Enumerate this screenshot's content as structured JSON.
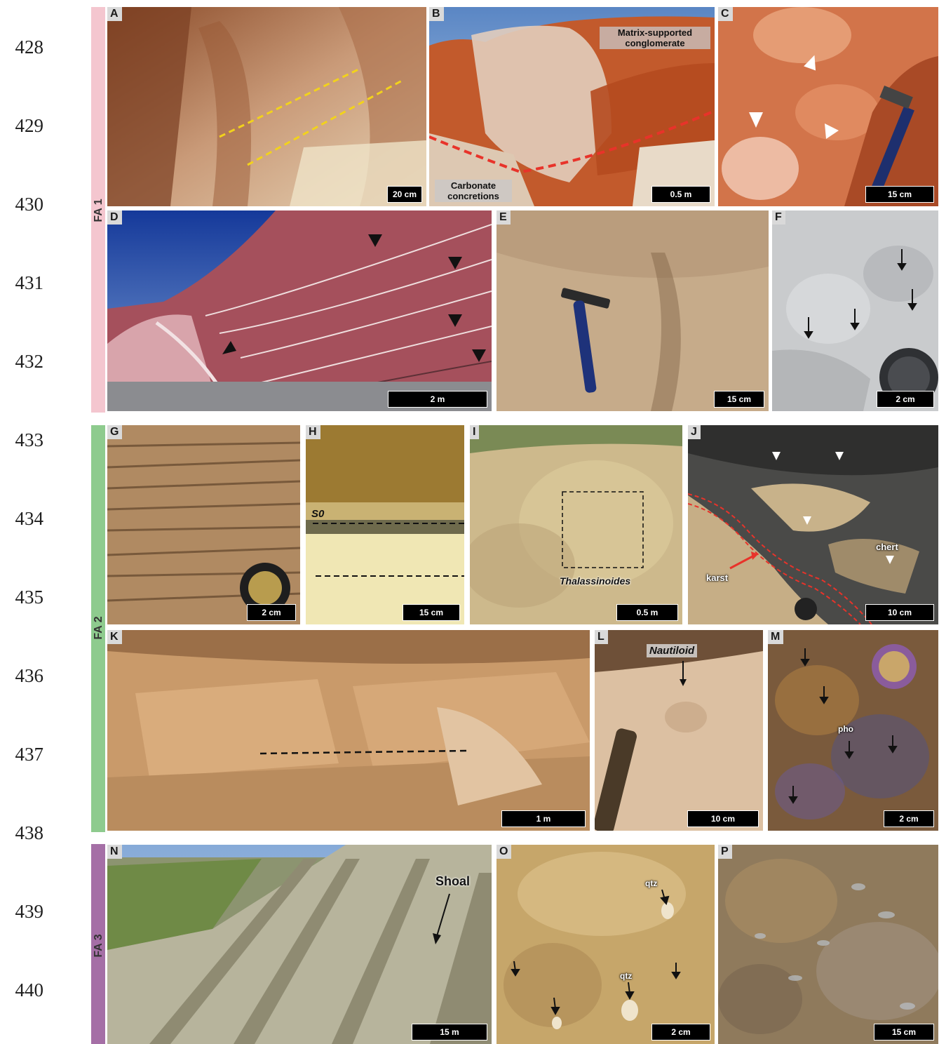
{
  "line_numbers": [
    "428",
    "429",
    "430",
    "431",
    "432",
    "433",
    "434",
    "435",
    "436",
    "437",
    "438",
    "439",
    "440"
  ],
  "facies_associations": {
    "fa1": {
      "label": "FA 1",
      "color": "#f4c6cf"
    },
    "fa2": {
      "label": "FA 2",
      "color": "#8ecb8e"
    },
    "fa3": {
      "label": "FA 3",
      "color": "#a56fa6"
    }
  },
  "panels": {
    "A": {
      "label": "A",
      "scale": "20 cm"
    },
    "B": {
      "label": "B",
      "scale": "0.5 m",
      "annotations": [
        "Matrix-supported conglomerate",
        "Carbonate concretions"
      ]
    },
    "C": {
      "label": "C",
      "scale": "15 cm"
    },
    "D": {
      "label": "D",
      "scale": "2 m"
    },
    "E": {
      "label": "E",
      "scale": "15 cm"
    },
    "F": {
      "label": "F",
      "scale": "2 cm"
    },
    "G": {
      "label": "G",
      "scale": "2 cm"
    },
    "H": {
      "label": "H",
      "scale": "15 cm",
      "annotations": [
        "S0"
      ]
    },
    "I": {
      "label": "I",
      "scale": "0.5 m",
      "annotations": [
        "Thalassinoides"
      ]
    },
    "J": {
      "label": "J",
      "scale": "10 cm",
      "annotations": [
        "chert",
        "karst"
      ]
    },
    "K": {
      "label": "K",
      "scale": "1 m"
    },
    "L": {
      "label": "L",
      "scale": "10 cm",
      "annotations": [
        "Nautiloid"
      ]
    },
    "M": {
      "label": "M",
      "scale": "2 cm",
      "annotations": [
        "pho"
      ]
    },
    "N": {
      "label": "N",
      "scale": "15 m",
      "annotations": [
        "Shoal"
      ]
    },
    "O": {
      "label": "O",
      "scale": "2 cm",
      "annotations": [
        "qtz",
        "qtz"
      ]
    },
    "P": {
      "label": "P",
      "scale": "15 cm"
    }
  },
  "colors": {
    "dashed_yellow": "#f2d21c",
    "dashed_red": "#e8332a",
    "dashed_black": "#111111"
  }
}
